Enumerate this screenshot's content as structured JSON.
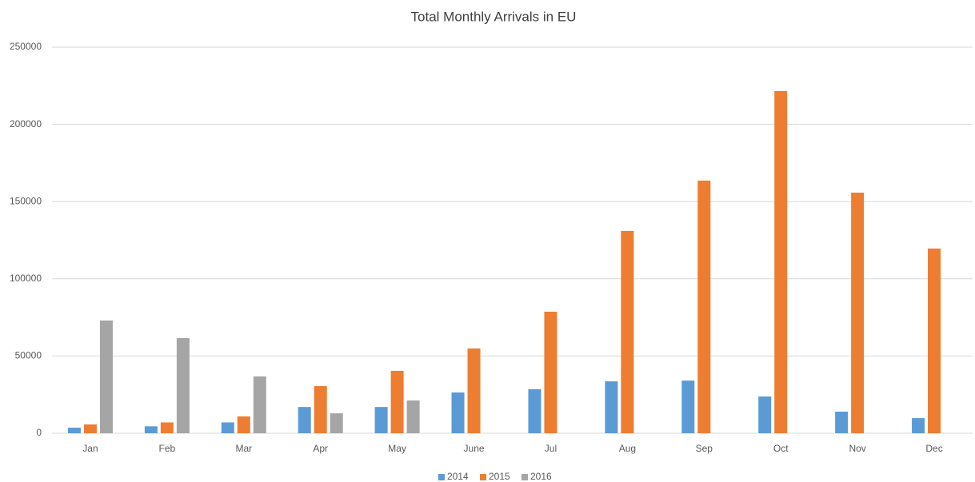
{
  "chart_data": {
    "type": "bar",
    "title": "Total Monthly Arrivals in EU",
    "categories": [
      "Jan",
      "Feb",
      "Mar",
      "Apr",
      "May",
      "June",
      "Jul",
      "Aug",
      "Sep",
      "Oct",
      "Nov",
      "Dec"
    ],
    "series": [
      {
        "name": "2014",
        "color": "#5b9bd5",
        "values": [
          3600,
          4500,
          7000,
          17000,
          17000,
          26400,
          28500,
          33600,
          34100,
          23800,
          14000,
          9800
        ]
      },
      {
        "name": "2015",
        "color": "#ed7d31",
        "values": [
          5700,
          7000,
          10900,
          30500,
          40400,
          54900,
          78700,
          131000,
          163600,
          221600,
          155800,
          119600
        ]
      },
      {
        "name": "2016",
        "color": "#a5a5a5",
        "values": [
          73000,
          61600,
          36800,
          12900,
          21200,
          null,
          null,
          null,
          null,
          null,
          null,
          null
        ]
      }
    ],
    "ylim": [
      0,
      250000
    ],
    "yticks": [
      0,
      50000,
      100000,
      150000,
      200000,
      250000
    ],
    "grid": true,
    "legend": "bottom"
  }
}
